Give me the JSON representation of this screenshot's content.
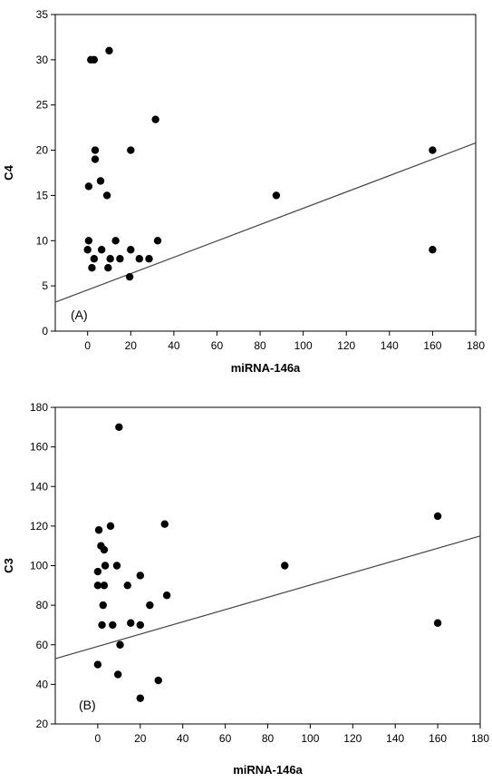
{
  "chart_data": [
    {
      "type": "scatter",
      "panel_label": "(A)",
      "xlabel": "miRNA-146a",
      "ylabel": "C4",
      "xlim": [
        -15,
        180
      ],
      "ylim": [
        0,
        35
      ],
      "xticks": [
        0,
        20,
        40,
        60,
        80,
        100,
        120,
        140,
        160,
        180
      ],
      "yticks": [
        0,
        5,
        10,
        15,
        20,
        25,
        30,
        35
      ],
      "grid": false,
      "points": [
        [
          1.5,
          30
        ],
        [
          3,
          30
        ],
        [
          10,
          31
        ],
        [
          31.5,
          23.4
        ],
        [
          3.5,
          20
        ],
        [
          3.5,
          19
        ],
        [
          20,
          20
        ],
        [
          6,
          16.6
        ],
        [
          0.5,
          16
        ],
        [
          9,
          15
        ],
        [
          0.5,
          10
        ],
        [
          0,
          9
        ],
        [
          6.5,
          9
        ],
        [
          13,
          10
        ],
        [
          32.5,
          10
        ],
        [
          20,
          9
        ],
        [
          3,
          8
        ],
        [
          10.5,
          8
        ],
        [
          15,
          8
        ],
        [
          24,
          8
        ],
        [
          28.5,
          8
        ],
        [
          2,
          7
        ],
        [
          9.5,
          7
        ],
        [
          19.5,
          6
        ],
        [
          87.5,
          15
        ],
        [
          160,
          20
        ],
        [
          160,
          9
        ]
      ],
      "regression_line": [
        [
          -15,
          3.2
        ],
        [
          180,
          20.8
        ]
      ]
    },
    {
      "type": "scatter",
      "panel_label": "(B)",
      "xlabel": "miRNA-146a",
      "ylabel": "C3",
      "xlim": [
        -20,
        180
      ],
      "ylim": [
        20,
        180
      ],
      "xticks": [
        0,
        20,
        40,
        60,
        80,
        100,
        120,
        140,
        160,
        180
      ],
      "yticks": [
        20,
        40,
        60,
        80,
        100,
        120,
        140,
        160,
        180
      ],
      "grid": false,
      "points": [
        [
          10,
          170
        ],
        [
          0.5,
          118
        ],
        [
          6,
          120
        ],
        [
          31.5,
          121
        ],
        [
          1.5,
          110
        ],
        [
          3,
          108
        ],
        [
          0,
          97
        ],
        [
          3.5,
          100
        ],
        [
          9,
          100
        ],
        [
          20,
          95
        ],
        [
          0,
          90
        ],
        [
          3,
          90
        ],
        [
          14,
          90
        ],
        [
          2.5,
          80
        ],
        [
          24.5,
          80
        ],
        [
          32.5,
          85
        ],
        [
          2,
          70
        ],
        [
          7,
          70
        ],
        [
          15.5,
          71
        ],
        [
          20,
          70
        ],
        [
          10.5,
          60
        ],
        [
          0,
          50
        ],
        [
          9.5,
          45
        ],
        [
          28.5,
          42
        ],
        [
          20,
          33
        ],
        [
          88,
          100
        ],
        [
          160,
          125
        ],
        [
          160,
          71
        ]
      ],
      "regression_line": [
        [
          -20,
          53
        ],
        [
          180,
          115
        ]
      ]
    }
  ]
}
